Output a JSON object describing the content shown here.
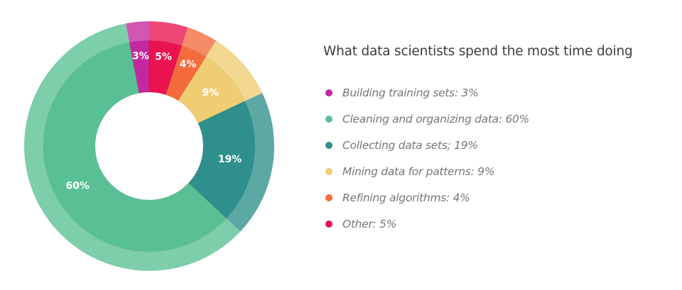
{
  "chart_data": {
    "type": "pie",
    "variant": "donut",
    "title": "What data scientists spend the most time doing",
    "slices": [
      {
        "label": "Other: 5%",
        "value": 5,
        "data_label": "5%",
        "color": "#e8134f"
      },
      {
        "label": "Refining algorithms: 4%",
        "value": 4,
        "data_label": "4%",
        "color": "#f46b3c"
      },
      {
        "label": "Mining data for patterns: 9%",
        "value": 9,
        "data_label": "9%",
        "color": "#f0cd72"
      },
      {
        "label": "Collecting data sets; 19%",
        "value": 19,
        "data_label": "19%",
        "color": "#2e8f8c"
      },
      {
        "label": "Cleaning and organizing data: 60%",
        "value": 60,
        "data_label": "60%",
        "color": "#58c094"
      },
      {
        "label": "Building training sets: 3%",
        "value": 3,
        "data_label": "3%",
        "color": "#c4289e"
      }
    ],
    "legend_order": [
      5,
      4,
      3,
      2,
      1,
      0
    ],
    "legend_position": "right"
  }
}
